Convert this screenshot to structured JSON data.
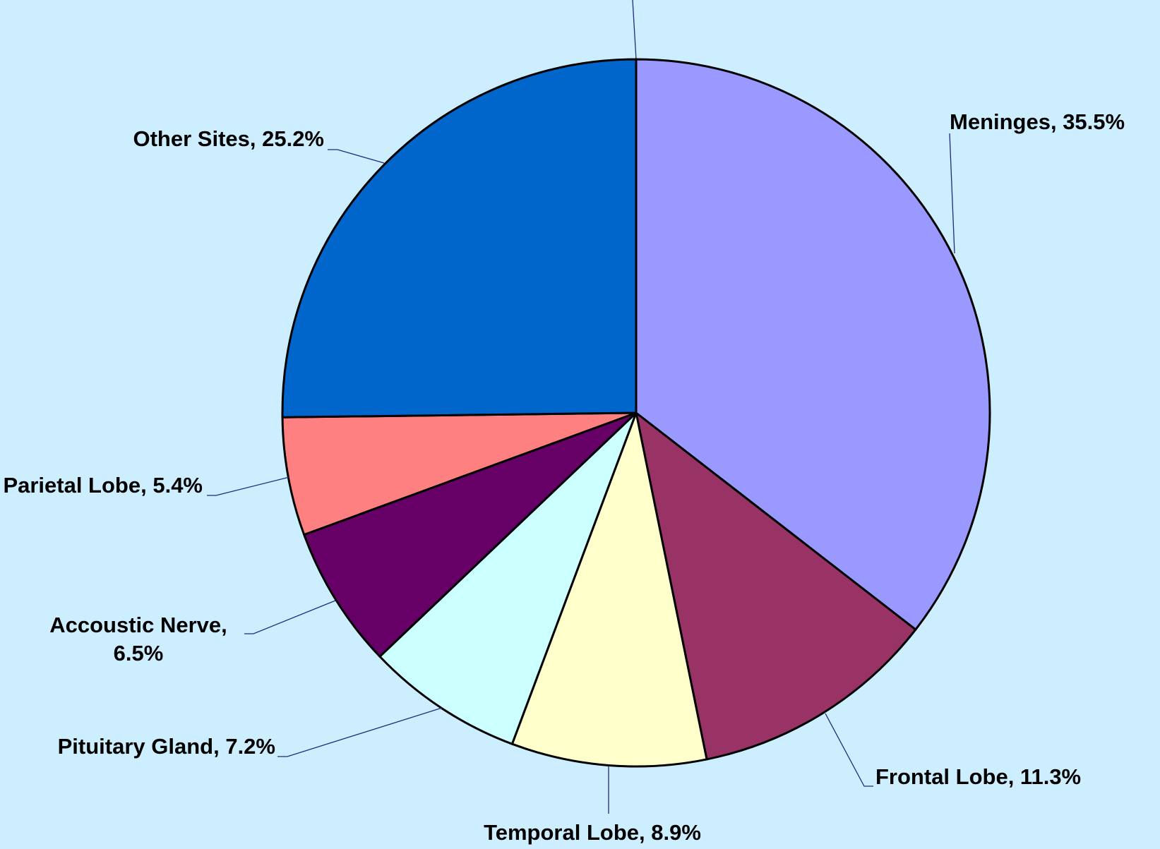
{
  "chart_data": {
    "type": "pie",
    "values": [
      35.5,
      11.3,
      8.9,
      7.2,
      6.5,
      5.4,
      25.2
    ],
    "value_labels": [
      "Meninges, 35.5%",
      "Frontal Lobe, 11.3%",
      "Temporal Lobe, 8.9%",
      "Pituitary Gland, 7.2%",
      "Accoustic Nerve, 6.5%",
      "Parietal Lobe, 5.4%",
      "Other Sites, 25.2%"
    ],
    "colors": [
      "#9999ff",
      "#993366",
      "#ffffcc",
      "#ccffff",
      "#660066",
      "#ff8080",
      "#0066cc"
    ]
  }
}
